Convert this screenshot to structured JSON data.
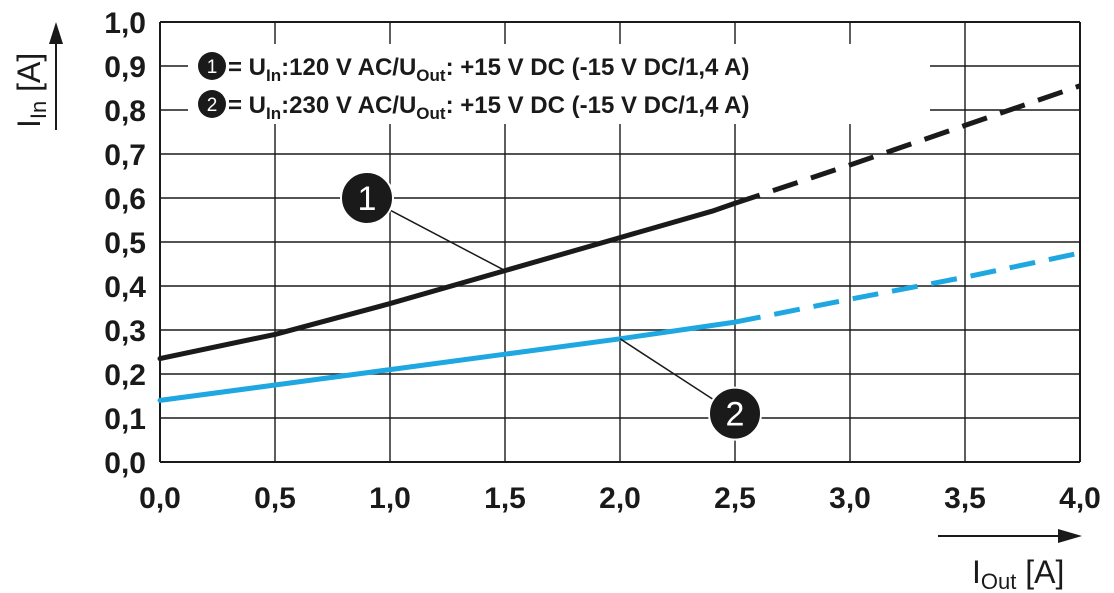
{
  "chart_data": {
    "type": "line",
    "x_axis": {
      "label_main": "I",
      "label_sub": "Out",
      "label_unit": " [A]",
      "ticks": [
        "0,0",
        "0,5",
        "1,0",
        "1,5",
        "2,0",
        "2,5",
        "3,0",
        "3,5",
        "4,0"
      ],
      "range": [
        0,
        4.0
      ]
    },
    "y_axis": {
      "label_main": "I",
      "label_sub": "In",
      "label_unit": " [A]",
      "ticks": [
        "0,0",
        "0,1",
        "0,2",
        "0,3",
        "0,4",
        "0,5",
        "0,6",
        "0,7",
        "0,8",
        "0,9",
        "1,0"
      ],
      "range": [
        0,
        1.0
      ]
    },
    "grid": true,
    "legend": {
      "placement": "top-left",
      "entries": [
        {
          "marker": "1",
          "parts": [
            " = U",
            "In",
            ":120 V AC/U",
            "Out",
            ": +15 V DC (-15 V DC/1,4 A)"
          ]
        },
        {
          "marker": "2",
          "parts": [
            " = U",
            "In",
            ":230 V AC/U",
            "Out",
            ": +15 V DC (-15 V DC/1,4 A)"
          ]
        }
      ]
    },
    "series": [
      {
        "marker": "1",
        "color": "#1a1a1a",
        "solid": [
          [
            0.0,
            0.235
          ],
          [
            0.5,
            0.29
          ],
          [
            1.0,
            0.36
          ],
          [
            1.5,
            0.435
          ],
          [
            2.0,
            0.51
          ],
          [
            2.4,
            0.57
          ],
          [
            2.5,
            0.588
          ]
        ],
        "dashed": [
          [
            2.5,
            0.588
          ],
          [
            3.0,
            0.675
          ],
          [
            3.5,
            0.765
          ],
          [
            4.0,
            0.855
          ]
        ],
        "callout": {
          "at": [
            1.5,
            0.435
          ],
          "label_pos": [
            0.9,
            0.6
          ]
        }
      },
      {
        "marker": "2",
        "color": "#1ea7e1",
        "solid": [
          [
            0.0,
            0.14
          ],
          [
            0.5,
            0.175
          ],
          [
            1.0,
            0.21
          ],
          [
            1.5,
            0.245
          ],
          [
            2.0,
            0.28
          ],
          [
            2.5,
            0.318
          ]
        ],
        "dashed": [
          [
            2.5,
            0.318
          ],
          [
            3.0,
            0.37
          ],
          [
            3.5,
            0.42
          ],
          [
            4.0,
            0.475
          ]
        ],
        "callout": {
          "at": [
            2.0,
            0.28
          ],
          "label_pos": [
            2.5,
            0.11
          ]
        }
      }
    ]
  }
}
